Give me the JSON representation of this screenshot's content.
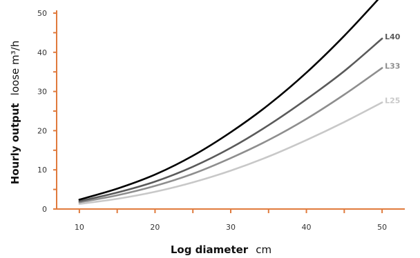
{
  "chart_data": {
    "type": "line",
    "xlabel_bold": "Log diameter",
    "xlabel_rest": "cm",
    "ylabel_bold": "Hourly output",
    "ylabel_rest": "loose m³/h",
    "xlim": [
      7,
      53
    ],
    "ylim": [
      0,
      50
    ],
    "x_ticks": [
      10,
      20,
      30,
      40,
      50
    ],
    "y_ticks": [
      0,
      10,
      20,
      30,
      40,
      50
    ],
    "x": [
      10,
      15,
      20,
      25,
      30,
      35,
      40,
      45,
      50
    ],
    "series": [
      {
        "name": "",
        "color": "#000000",
        "values": [
          2.4,
          5.2,
          8.8,
          13.6,
          19.6,
          26.6,
          34.8,
          44.2,
          54.6
        ]
      },
      {
        "name": "L40",
        "color": "#5a5a5a",
        "values": [
          2.0,
          4.2,
          7.0,
          10.8,
          15.6,
          21.4,
          28.0,
          35.2,
          43.5
        ]
      },
      {
        "name": "L33",
        "color": "#8e8e8e",
        "values": [
          1.7,
          3.5,
          5.9,
          9.0,
          13.0,
          17.6,
          23.0,
          29.2,
          36.0
        ]
      },
      {
        "name": "L25",
        "color": "#c8c8c8",
        "values": [
          1.3,
          2.6,
          4.4,
          6.8,
          9.8,
          13.4,
          17.6,
          22.2,
          27.2
        ]
      }
    ],
    "axis_color": "#e07a3c",
    "grid": false
  }
}
